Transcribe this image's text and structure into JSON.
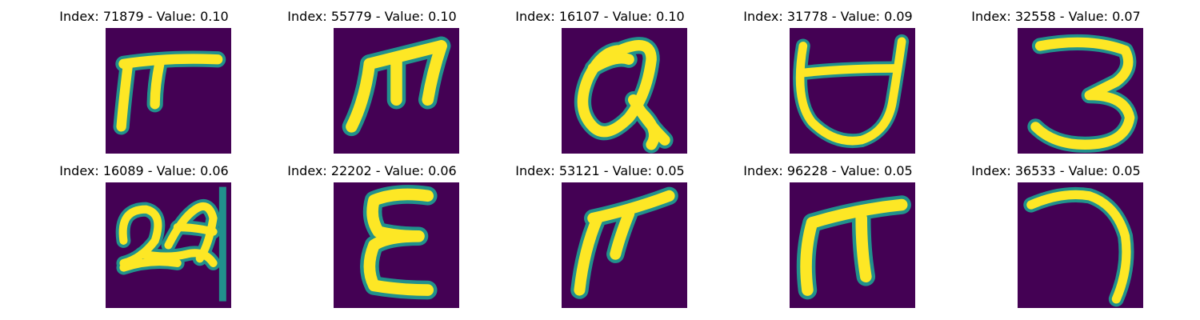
{
  "figure": {
    "panels": [
      {
        "title": "Index: 71879 - Value: 0.10",
        "glyph": "pi-like character with long top bar"
      },
      {
        "title": "Index: 55779 - Value: 0.10",
        "glyph": "m-like character with three legs"
      },
      {
        "title": "Index: 16107 - Value: 0.10",
        "glyph": "alpha / looped a character"
      },
      {
        "title": "Index: 31778 - Value: 0.09",
        "glyph": "cup-shaped character with top bar"
      },
      {
        "title": "Index: 32558 - Value: 0.07",
        "glyph": "digit 3"
      },
      {
        "title": "Index: 16089 - Value: 0.06",
        "glyph": "cursive scribble with vertical line"
      },
      {
        "title": "Index: 22202 - Value: 0.06",
        "glyph": "epsilon / E-like character"
      },
      {
        "title": "Index: 53121 - Value: 0.05",
        "glyph": "slanted pi-like character"
      },
      {
        "title": "Index: 96228 - Value: 0.05",
        "glyph": "pi-like character"
      },
      {
        "title": "Index: 36533 - Value: 0.05",
        "glyph": "hook / reversed J character"
      }
    ],
    "colors": {
      "background": "#440154",
      "stroke_mid": "#21918c",
      "stroke_high": "#fde725"
    }
  }
}
